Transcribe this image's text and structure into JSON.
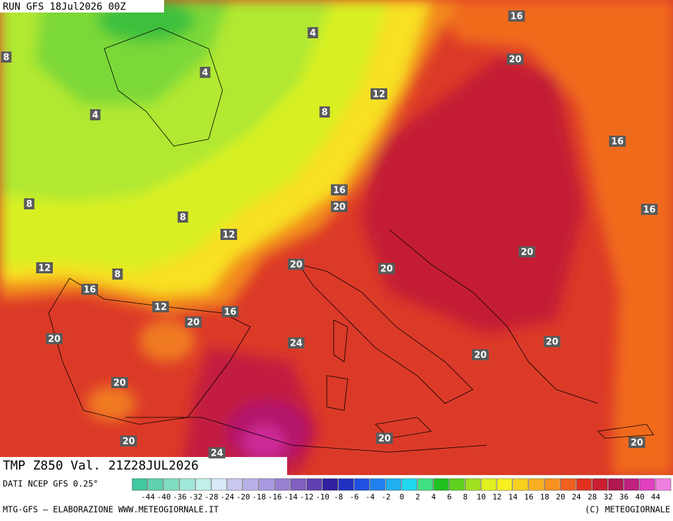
{
  "header": {
    "run": "RUN GFS 18Jul2026 00Z"
  },
  "footer": {
    "label": "TMP Z850 Val. 21Z28JUL2026",
    "source": "DATI NCEP GFS 0.25°",
    "credit": "MTG-GFS — ELABORAZIONE WWW.METEOGIORNALE.IT",
    "copyright": "(C) METEOGIORNALE"
  },
  "legend": {
    "ticks": [
      -44,
      -40,
      -36,
      -32,
      -28,
      -24,
      -20,
      -18,
      -16,
      -14,
      -12,
      -10,
      -8,
      -6,
      -4,
      -2,
      0,
      2,
      4,
      6,
      8,
      10,
      12,
      14,
      16,
      18,
      20,
      24,
      28,
      32,
      36,
      40,
      44
    ],
    "colors": [
      "#40c8a0",
      "#60d0b0",
      "#80dcc0",
      "#a0e8d8",
      "#c0f0e8",
      "#d8e8f8",
      "#c8c8f0",
      "#b8b0e8",
      "#a898e0",
      "#9880d0",
      "#8060c0",
      "#6040b0",
      "#3020a0",
      "#2030c0",
      "#2050e0",
      "#2080f0",
      "#20b0f0",
      "#20d8f0",
      "#40e080",
      "#20c020",
      "#60d020",
      "#a0e020",
      "#e0f020",
      "#f8f020",
      "#f8d020",
      "#f8b020",
      "#f89020",
      "#f06020",
      "#e03020",
      "#c82030",
      "#b01850",
      "#c02080",
      "#e040c0",
      "#f080e0"
    ]
  },
  "contour_labels": [
    16,
    4,
    20,
    8,
    4,
    12,
    4,
    8,
    16,
    8,
    16,
    20,
    16,
    8,
    12,
    20,
    12,
    8,
    20,
    20,
    16,
    12,
    16,
    20,
    20,
    24,
    20,
    20,
    20,
    20,
    20,
    20,
    24
  ]
}
